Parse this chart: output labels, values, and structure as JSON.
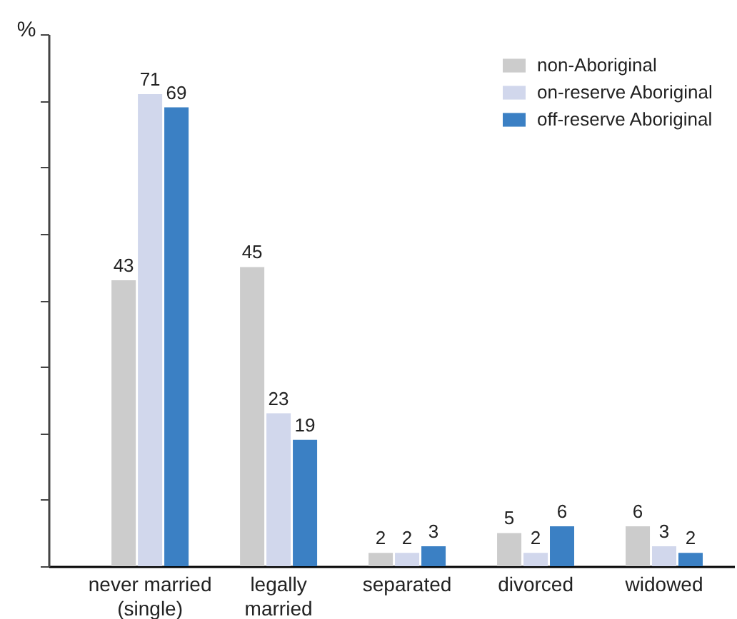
{
  "chart_data": {
    "type": "bar",
    "ylabel": "%",
    "categories": [
      "never married\n(single)",
      "legally\nmarried",
      "separated",
      "divorced",
      "widowed"
    ],
    "series": [
      {
        "name": "non-Aboriginal",
        "color": "#cccccc",
        "values": [
          43,
          45,
          2,
          5,
          6
        ]
      },
      {
        "name": "on-reserve Aboriginal",
        "color": "#d1d7ec",
        "values": [
          71,
          23,
          2,
          2,
          3
        ]
      },
      {
        "name": "off-reserve Aboriginal",
        "color": "#3b80c4",
        "values": [
          69,
          19,
          3,
          6,
          2
        ]
      }
    ],
    "ylim": [
      0,
      80
    ],
    "yticks": [
      {
        "value": 0,
        "label": null
      },
      {
        "value": 10,
        "label": null
      },
      {
        "value": 20,
        "label": null
      },
      {
        "value": 30,
        "label": null
      },
      {
        "value": 40,
        "label": null
      },
      {
        "value": 50,
        "label": null
      },
      {
        "value": 60,
        "label": null
      },
      {
        "value": 70,
        "label": null
      },
      {
        "value": 80,
        "label": null
      }
    ],
    "tick_labels": "x",
    "data_labels": true,
    "legend": "top right"
  }
}
